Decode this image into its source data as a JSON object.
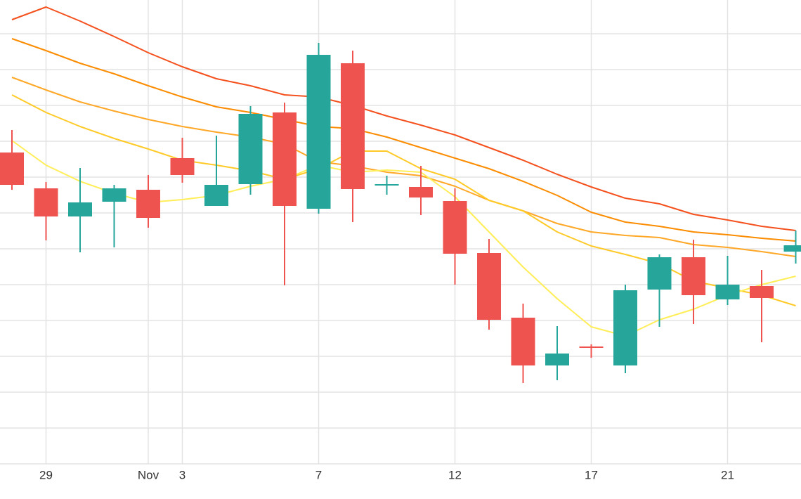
{
  "chart_data": {
    "type": "candlestick",
    "categories": [
      null,
      "29",
      null,
      null,
      "Nov",
      "3",
      null,
      null,
      null,
      "7",
      null,
      null,
      null,
      "12",
      null,
      null,
      null,
      "17",
      null,
      null,
      null,
      "21",
      null,
      null
    ],
    "open": [
      443,
      392,
      352,
      373,
      390,
      435,
      367,
      398,
      500,
      363,
      570,
      396,
      394,
      374,
      300,
      208,
      140,
      167,
      140,
      248,
      294,
      234,
      253,
      302
    ],
    "high": [
      475,
      401,
      421,
      397,
      411,
      464,
      467,
      509,
      514,
      599,
      588,
      410,
      424,
      392,
      320,
      228,
      196,
      170,
      255,
      298,
      319,
      296,
      276,
      332
    ],
    "low": [
      390,
      318,
      301,
      308,
      336,
      400,
      367,
      383,
      254,
      356,
      344,
      383,
      354,
      255,
      191,
      115,
      119,
      151,
      129,
      195,
      199,
      226,
      173,
      285
    ],
    "close": [
      397,
      352,
      372,
      392,
      350,
      411,
      397,
      498,
      367,
      582,
      391,
      398,
      379,
      299,
      205,
      140,
      157,
      165,
      247,
      294,
      240,
      255,
      236,
      311
    ],
    "up_color": "#26a69a",
    "down_color": "#ef5350",
    "series": [
      {
        "color": "#f4511e",
        "values": [
          632,
          650,
          630,
          608,
          585,
          565,
          548,
          538,
          525,
          522,
          510,
          495,
          482,
          468,
          450,
          432,
          412,
          394,
          378,
          370,
          355,
          347,
          338,
          332
        ]
      },
      {
        "color": "#fb8c00",
        "values": [
          605,
          588,
          570,
          555,
          538,
          522,
          508,
          500,
          490,
          480,
          477,
          465,
          450,
          435,
          420,
          402,
          382,
          358,
          344,
          338,
          330,
          326,
          321,
          317
        ]
      },
      {
        "color": "#ffa726",
        "values": [
          550,
          532,
          515,
          502,
          490,
          480,
          472,
          465,
          455,
          430,
          424,
          415,
          410,
          395,
          375,
          360,
          342,
          330,
          325,
          322,
          312,
          308,
          302,
          295
        ]
      },
      {
        "color": "#ffca28",
        "values": [
          525,
          500,
          480,
          463,
          448,
          432,
          425,
          417,
          405,
          420,
          445,
          445,
          420,
          405,
          375,
          360,
          330,
          310,
          298,
          285,
          260,
          250,
          240,
          225
        ]
      },
      {
        "color": "#ffee58",
        "values": [
          460,
          425,
          402,
          385,
          372,
          376,
          382,
          395,
          405,
          425,
          415,
          418,
          415,
          380,
          330,
          280,
          235,
          195,
          182,
          205,
          220,
          240,
          255,
          267
        ]
      }
    ],
    "ylim": [
      0,
      660
    ],
    "yticks": [
      0,
      51,
      102,
      153,
      204,
      255,
      306,
      357,
      408,
      459,
      510,
      561,
      612
    ],
    "grid": true
  }
}
